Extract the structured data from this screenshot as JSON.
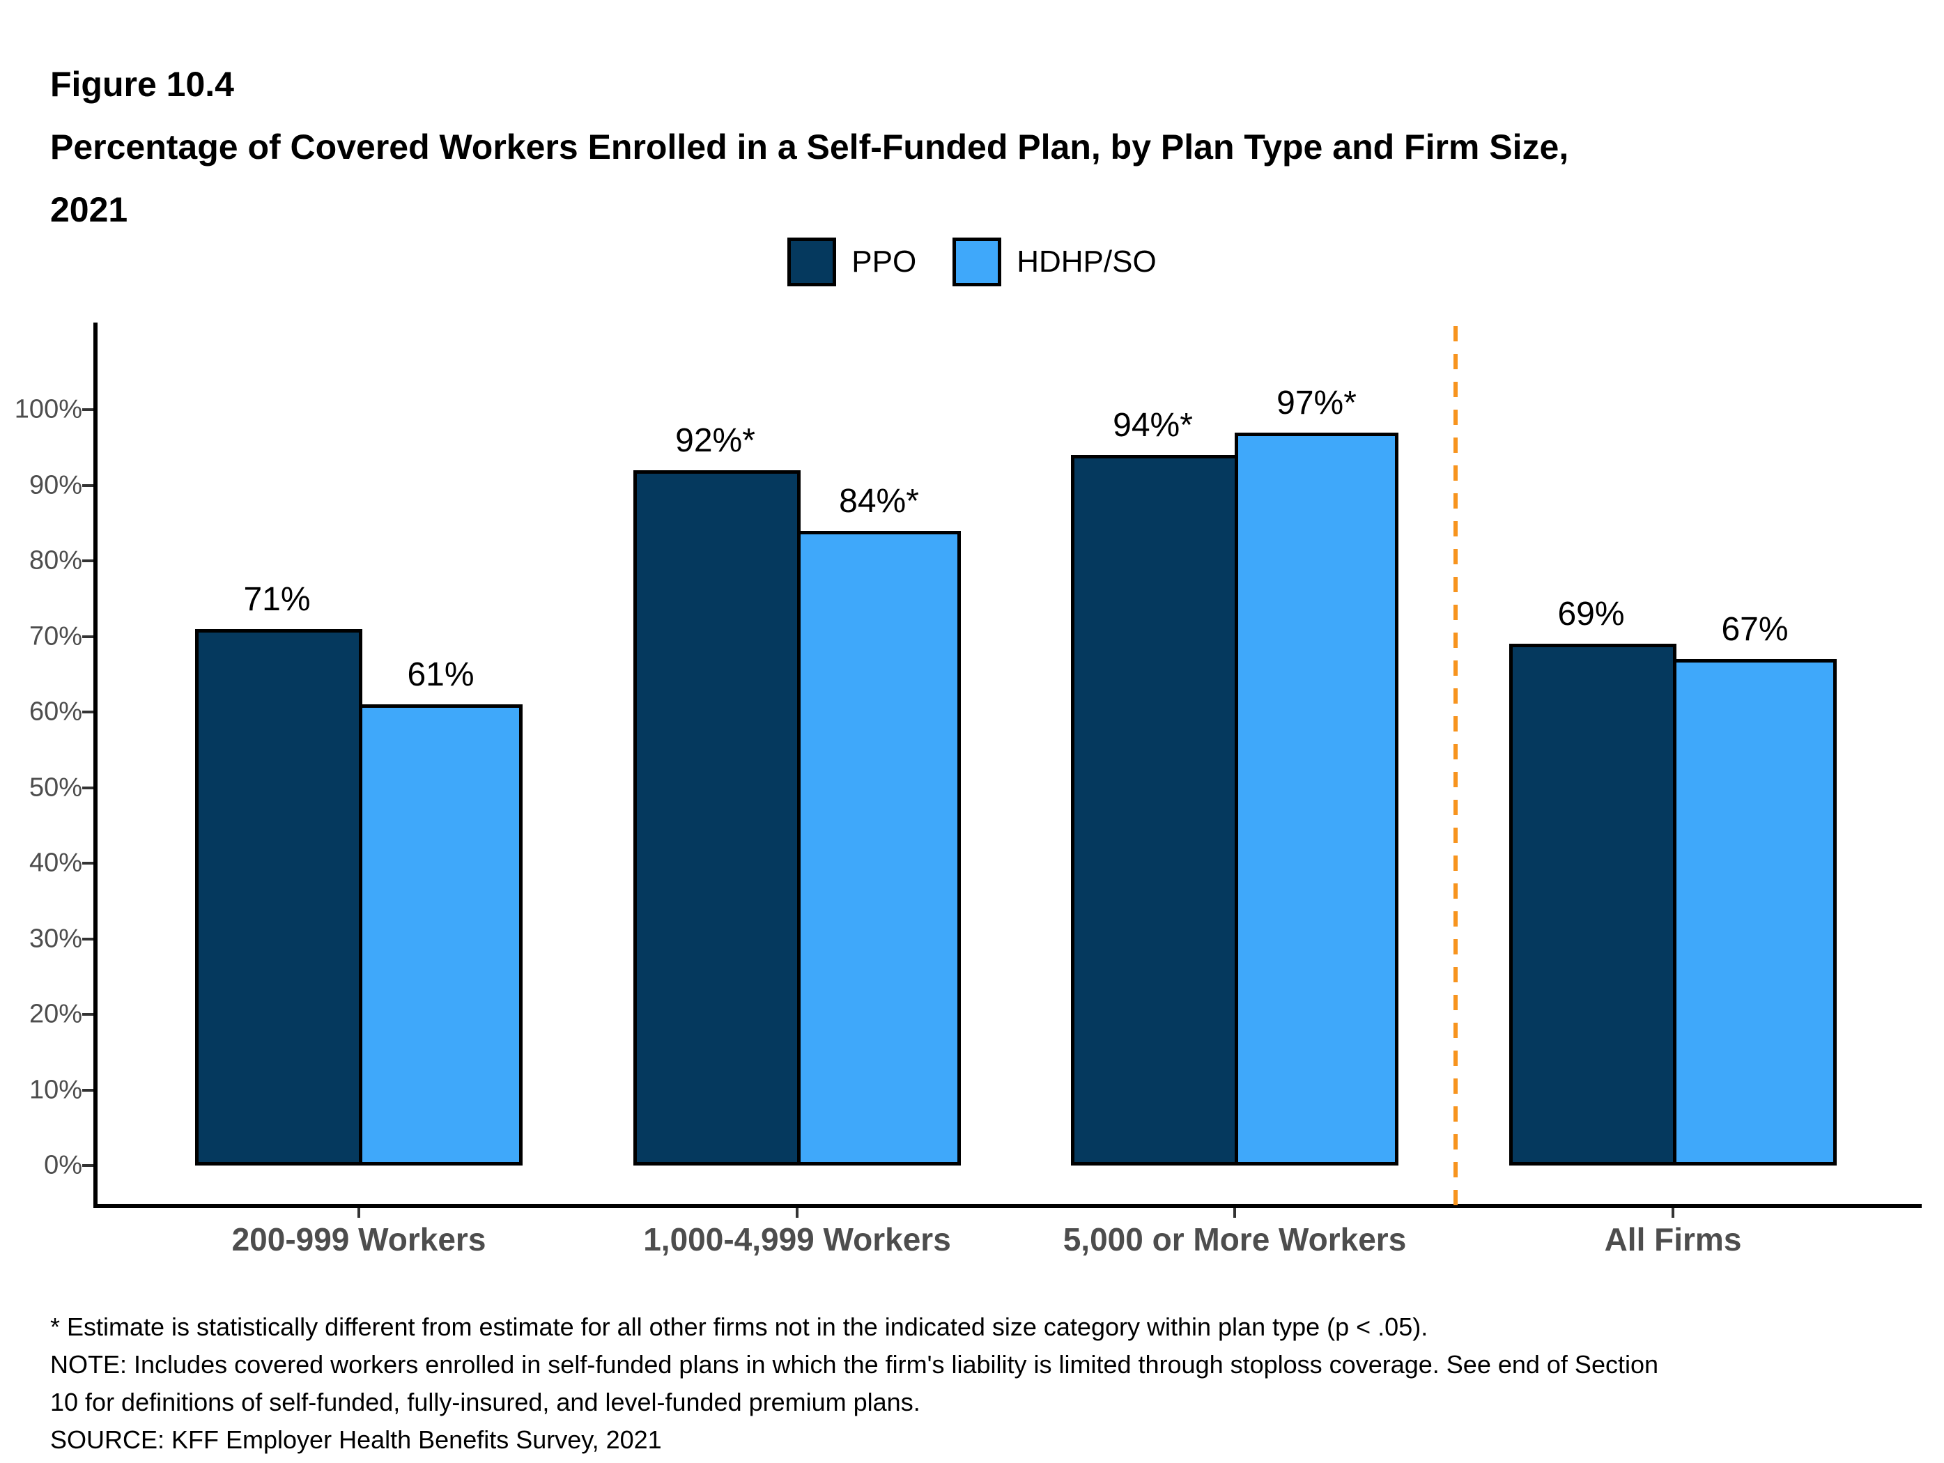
{
  "figure": {
    "label": "Figure 10.4",
    "title_line1": "Percentage of Covered Workers Enrolled in a Self-Funded Plan, by Plan Type and Firm Size,",
    "title_line2": "2021"
  },
  "colors": {
    "ppo": "#05395E",
    "hdhp_so": "#3FA8FA",
    "separator_orange": "#F7941E",
    "axis_black": "#000000",
    "axis_text_gray": "#4D4D4D"
  },
  "legend": [
    {
      "label": "PPO",
      "color": "#05395E"
    },
    {
      "label": "HDHP/SO",
      "color": "#3FA8FA"
    }
  ],
  "chart_data": {
    "type": "bar",
    "title": "Percentage of Covered Workers Enrolled in a Self-Funded Plan, by Plan Type and Firm Size, 2021",
    "categories": [
      "200-999 Workers",
      "1,000-4,999 Workers",
      "5,000 or More Workers",
      "All Firms"
    ],
    "series": [
      {
        "name": "PPO",
        "color": "#05395E",
        "values": [
          71,
          92,
          94,
          69
        ],
        "labels": [
          "71%",
          "92%*",
          "94%*",
          "69%"
        ]
      },
      {
        "name": "HDHP/SO",
        "color": "#3FA8FA",
        "values": [
          61,
          84,
          97,
          67
        ],
        "labels": [
          "61%",
          "84%*",
          "97%*",
          "67%"
        ]
      }
    ],
    "xlabel": "",
    "ylabel": "",
    "ylim": [
      0,
      100
    ],
    "y_ticks": [
      "0%",
      "10%",
      "20%",
      "30%",
      "40%",
      "50%",
      "60%",
      "70%",
      "80%",
      "90%",
      "100%"
    ],
    "grid": false,
    "legend_position": "top",
    "separator": {
      "after_category": "5,000 or More Workers",
      "style": "dashed",
      "color": "#F7941E"
    }
  },
  "footnotes": [
    "* Estimate is statistically different from estimate for all other firms not in the indicated size category within plan type (p < .05).",
    "NOTE: Includes covered workers enrolled in self-funded plans in which the firm's liability is limited through stoploss coverage. See end of Section",
    "10 for definitions of self-funded, fully-insured, and level-funded premium plans.",
    "SOURCE: KFF Employer Health Benefits Survey, 2021"
  ]
}
